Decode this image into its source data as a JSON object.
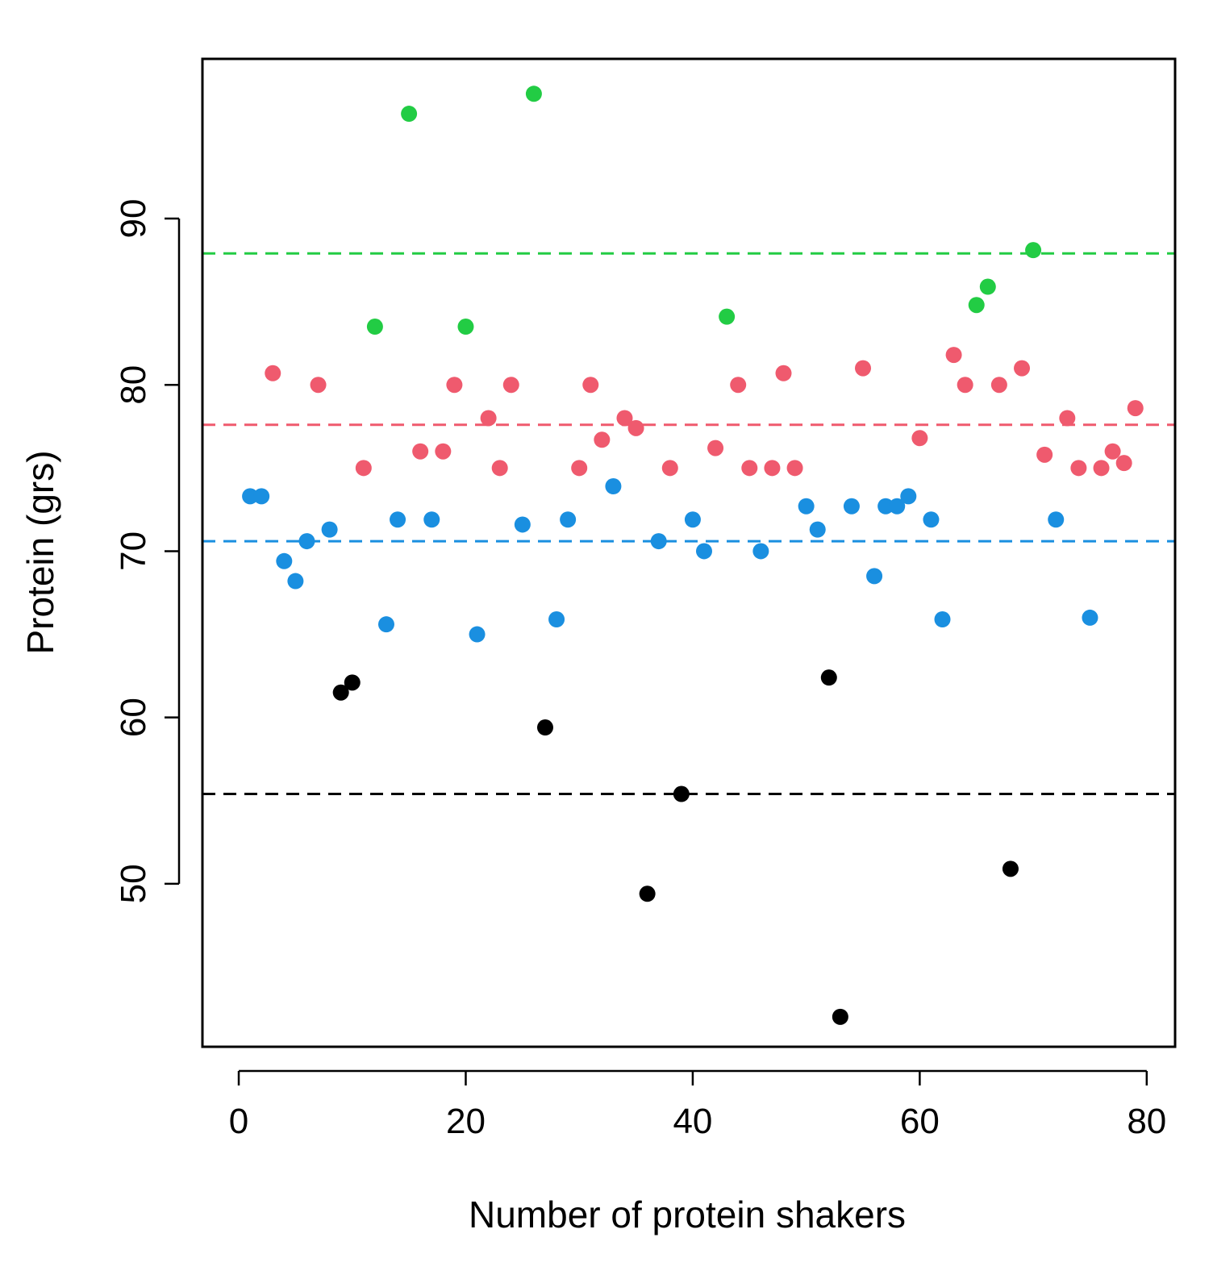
{
  "chart_data": {
    "type": "scatter",
    "title": "",
    "xlabel": "Number of protein shakers",
    "ylabel": "Protein (grs)",
    "xlim": [
      -3.2,
      82.5
    ],
    "ylim": [
      40.2,
      99.6
    ],
    "x_ticks": [
      0,
      20,
      40,
      60,
      80
    ],
    "y_ticks": [
      50,
      60,
      70,
      80,
      90
    ],
    "x_tick_labels": [
      "0",
      "20",
      "40",
      "60",
      "80"
    ],
    "y_tick_labels": [
      "50",
      "60",
      "70",
      "80",
      "90"
    ],
    "grid": false,
    "legend": null,
    "colors": {
      "green": "#22cc44",
      "red": "#ef5a6e",
      "blue": "#1a8fe0",
      "black": "#000000"
    },
    "reference_lines": [
      {
        "name": "green-mean",
        "y": 87.9,
        "color": "#22cc44"
      },
      {
        "name": "red-mean",
        "y": 77.6,
        "color": "#ef5a6e"
      },
      {
        "name": "blue-mean",
        "y": 70.6,
        "color": "#1a8fe0"
      },
      {
        "name": "black-mean",
        "y": 55.4,
        "color": "#000000"
      }
    ],
    "series": [
      {
        "name": "green",
        "color": "#22cc44",
        "points": [
          [
            12,
            83.5
          ],
          [
            15,
            96.3
          ],
          [
            20,
            83.5
          ],
          [
            26,
            97.5
          ],
          [
            43,
            84.1
          ],
          [
            65,
            84.8
          ],
          [
            66,
            85.9
          ],
          [
            70,
            88.1
          ]
        ]
      },
      {
        "name": "red",
        "color": "#ef5a6e",
        "points": [
          [
            3,
            80.7
          ],
          [
            7,
            80
          ],
          [
            11,
            75
          ],
          [
            16,
            76
          ],
          [
            18,
            76
          ],
          [
            19,
            80
          ],
          [
            22,
            78
          ],
          [
            23,
            75
          ],
          [
            24,
            80
          ],
          [
            30,
            75
          ],
          [
            31,
            80
          ],
          [
            32,
            76.7
          ],
          [
            34,
            78
          ],
          [
            35,
            77.4
          ],
          [
            38,
            75
          ],
          [
            42,
            76.2
          ],
          [
            44,
            80
          ],
          [
            45,
            75
          ],
          [
            47,
            75
          ],
          [
            48,
            80.7
          ],
          [
            49,
            75
          ],
          [
            55,
            81
          ],
          [
            60,
            76.8
          ],
          [
            63,
            81.8
          ],
          [
            64,
            80
          ],
          [
            67,
            80
          ],
          [
            69,
            81
          ],
          [
            71,
            75.8
          ],
          [
            73,
            78
          ],
          [
            74,
            75
          ],
          [
            76,
            75
          ],
          [
            77,
            76
          ],
          [
            78,
            75.3
          ],
          [
            79,
            78.6
          ]
        ]
      },
      {
        "name": "blue",
        "color": "#1a8fe0",
        "points": [
          [
            1,
            73.3
          ],
          [
            2,
            73.3
          ],
          [
            4,
            69.4
          ],
          [
            5,
            68.2
          ],
          [
            6,
            70.6
          ],
          [
            8,
            71.3
          ],
          [
            13,
            65.6
          ],
          [
            14,
            71.9
          ],
          [
            17,
            71.9
          ],
          [
            21,
            65
          ],
          [
            25,
            71.6
          ],
          [
            28,
            65.9
          ],
          [
            29,
            71.9
          ],
          [
            33,
            73.9
          ],
          [
            37,
            70.6
          ],
          [
            40,
            71.9
          ],
          [
            41,
            70
          ],
          [
            46,
            70
          ],
          [
            50,
            72.7
          ],
          [
            51,
            71.3
          ],
          [
            54,
            72.7
          ],
          [
            56,
            68.5
          ],
          [
            57,
            72.7
          ],
          [
            58,
            72.7
          ],
          [
            59,
            73.3
          ],
          [
            61,
            71.9
          ],
          [
            62,
            65.9
          ],
          [
            72,
            71.9
          ],
          [
            75,
            66
          ]
        ]
      },
      {
        "name": "black",
        "color": "#000000",
        "points": [
          [
            9,
            61.5
          ],
          [
            10,
            62.1
          ],
          [
            27,
            59.4
          ],
          [
            36,
            49.4
          ],
          [
            39,
            55.4
          ],
          [
            52,
            62.4
          ],
          [
            53,
            42
          ],
          [
            68,
            50.9
          ]
        ]
      }
    ]
  }
}
